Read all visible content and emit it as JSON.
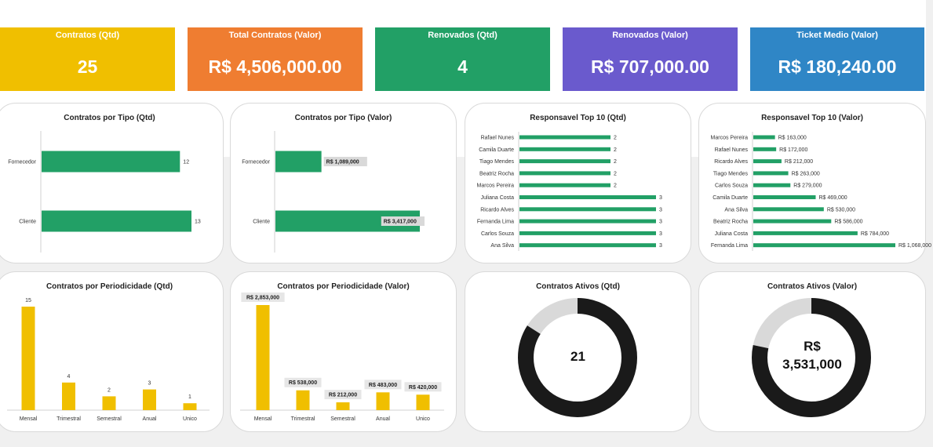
{
  "colors": {
    "yellow": "#f0bf00",
    "orange": "#ef7d31",
    "green": "#22a066",
    "purple": "#6a5acd",
    "blue": "#2f86c6",
    "bar_green": "#22a066",
    "bar_yellow": "#f0bf00",
    "donut_dark": "#1a1a1a",
    "donut_light": "#d9d9d9"
  },
  "kpis": [
    {
      "title": "Contratos (Qtd)",
      "value": "25"
    },
    {
      "title": "Total Contratos (Valor)",
      "value": "R$ 4,506,000.00"
    },
    {
      "title": "Renovados (Qtd)",
      "value": "4"
    },
    {
      "title": "Renovados (Valor)",
      "value": "R$ 707,000.00"
    },
    {
      "title": "Ticket Medio (Valor)",
      "value": "R$ 180,240.00"
    }
  ],
  "chart_data": [
    {
      "id": "tipo_qtd",
      "type": "bar",
      "orientation": "horizontal",
      "title": "Contratos por Tipo (Qtd)",
      "categories": [
        "Fornecedor",
        "Cliente"
      ],
      "values": [
        12,
        13
      ],
      "labels": [
        "12",
        "13"
      ],
      "xlim": [
        0,
        13
      ]
    },
    {
      "id": "tipo_valor",
      "type": "bar",
      "orientation": "horizontal",
      "title": "Contratos por Tipo (Valor)",
      "categories": [
        "Fornecedor",
        "Cliente"
      ],
      "values": [
        1089000,
        3417000
      ],
      "labels": [
        "R$ 1,089,000",
        "R$ 3,417,000"
      ],
      "xlim": [
        0,
        3417000
      ]
    },
    {
      "id": "resp_qtd",
      "type": "bar",
      "orientation": "horizontal",
      "title": "Responsavel Top 10 (Qtd)",
      "categories": [
        "Rafael Nunes",
        "Camila Duarte",
        "Tiago Mendes",
        "Beatriz Rocha",
        "Marcos Pereira",
        "Juliana Costa",
        "Ricardo Alves",
        "Fernanda Lima",
        "Carlos Souza",
        "Ana Silva"
      ],
      "values": [
        2,
        2,
        2,
        2,
        2,
        3,
        3,
        3,
        3,
        3
      ],
      "labels": [
        "2",
        "2",
        "2",
        "2",
        "2",
        "3",
        "3",
        "3",
        "3",
        "3"
      ],
      "xlim": [
        0,
        3
      ]
    },
    {
      "id": "resp_valor",
      "type": "bar",
      "orientation": "horizontal",
      "title": "Responsavel Top 10 (Valor)",
      "categories": [
        "Marcos Pereira",
        "Rafael Nunes",
        "Ricardo Alves",
        "Tiago Mendes",
        "Carlos Souza",
        "Camila Duarte",
        "Ana Silva",
        "Beatriz Rocha",
        "Juliana Costa",
        "Fernanda Lima"
      ],
      "values": [
        163000,
        172000,
        212000,
        263000,
        279000,
        469000,
        530000,
        586000,
        784000,
        1068000
      ],
      "labels": [
        "R$ 163,000",
        "R$ 172,000",
        "R$ 212,000",
        "R$ 263,000",
        "R$ 279,000",
        "R$ 469,000",
        "R$ 530,000",
        "R$ 586,000",
        "R$ 784,000",
        "R$ 1,068,000"
      ],
      "xlim": [
        0,
        1068000
      ]
    },
    {
      "id": "period_qtd",
      "type": "bar",
      "orientation": "vertical",
      "title": "Contratos por Periodicidade (Qtd)",
      "categories": [
        "Mensal",
        "Trimestral",
        "Semestral",
        "Anual",
        "Unico"
      ],
      "values": [
        15,
        4,
        2,
        3,
        1
      ],
      "labels": [
        "15",
        "4",
        "2",
        "3",
        "1"
      ],
      "ylim": [
        0,
        15
      ]
    },
    {
      "id": "period_valor",
      "type": "bar",
      "orientation": "vertical",
      "title": "Contratos por Periodicidade (Valor)",
      "categories": [
        "Mensal",
        "Trimestral",
        "Semestral",
        "Anual",
        "Unico"
      ],
      "values": [
        2853000,
        538000,
        212000,
        483000,
        420000
      ],
      "labels": [
        "R$ 2,853,000",
        "R$ 538,000",
        "R$ 212,000",
        "R$ 483,000",
        "R$ 420,000"
      ],
      "ylim": [
        0,
        2853000
      ]
    },
    {
      "id": "ativos_qtd",
      "type": "pie",
      "variant": "donut",
      "title": "Contratos Ativos (Qtd)",
      "active_fraction": 0.84,
      "center_label": "21"
    },
    {
      "id": "ativos_valor",
      "type": "pie",
      "variant": "donut",
      "title": "Contratos Ativos (Valor)",
      "active_fraction": 0.7836,
      "center_label_line1": "R$",
      "center_label_line2": "3,531,000"
    }
  ]
}
